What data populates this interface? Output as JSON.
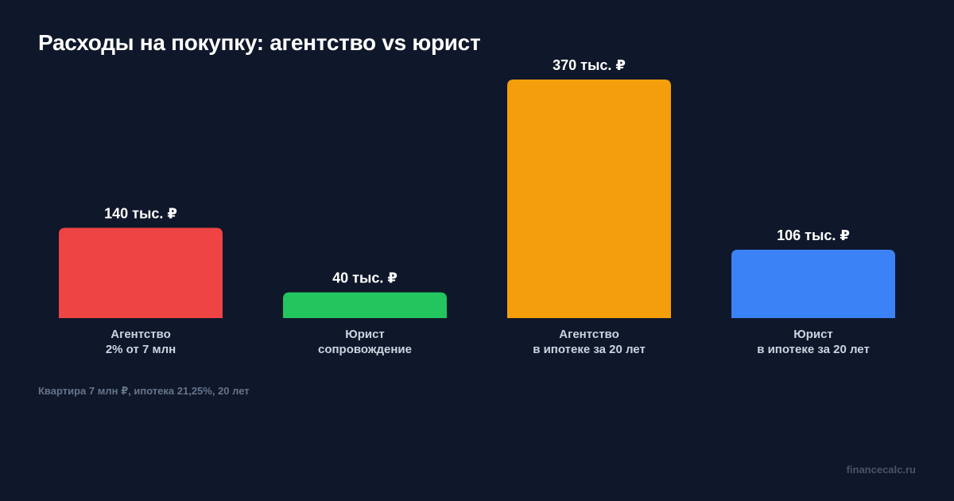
{
  "title": "Расходы на покупку: агентство vs юрист",
  "footnote": "Квартира 7 млн ₽, ипотека 21,25%, 20 лет",
  "source": "financecalc.ru",
  "chart_data": {
    "type": "bar",
    "title": "Расходы на покупку: агентство vs юрист",
    "unit": "тыс. ₽",
    "categories": [
      [
        "Агентство",
        "2% от 7 млн"
      ],
      [
        "Юрист",
        "сопровождение"
      ],
      [
        "Агентство",
        "в ипотеке за 20 лет"
      ],
      [
        "Юрист",
        "в ипотеке за 20 лет"
      ]
    ],
    "values": [
      140,
      40,
      370,
      106
    ],
    "value_labels": [
      "140 тыс. ₽",
      "40 тыс. ₽",
      "370 тыс. ₽",
      "106 тыс. ₽"
    ],
    "colors": [
      "#ef4444",
      "#22c55e",
      "#f59e0b",
      "#3b82f6"
    ],
    "ylim": [
      0,
      370
    ],
    "grid": false,
    "legend": "none"
  }
}
